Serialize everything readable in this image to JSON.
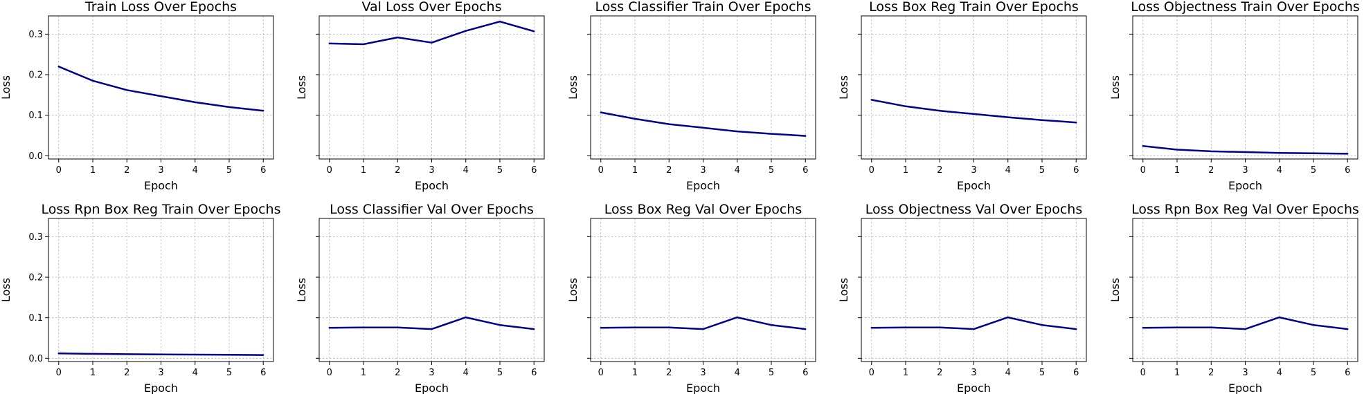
{
  "colors": {
    "line": "#00008b",
    "grid": "#b0b0b0",
    "background": "#ffffff"
  },
  "chart_data": [
    {
      "type": "line",
      "title": "Train Loss Over Epochs",
      "xlabel": "Epoch",
      "ylabel": "Loss",
      "x": [
        0,
        1,
        2,
        3,
        4,
        5,
        6
      ],
      "values": [
        0.22,
        0.185,
        0.162,
        0.147,
        0.132,
        0.12,
        0.111
      ],
      "xlim": [
        -0.3,
        6.3
      ],
      "ylim": [
        -0.008,
        0.345
      ],
      "yticks": [
        0.0,
        0.1,
        0.2,
        0.3
      ],
      "ytick_labels": [
        "0.0",
        "0.1",
        "0.2",
        "0.3"
      ],
      "grid": true
    },
    {
      "type": "line",
      "title": "Val Loss Over Epochs",
      "xlabel": "Epoch",
      "ylabel": "Loss",
      "x": [
        0,
        1,
        2,
        3,
        4,
        5,
        6
      ],
      "values": [
        0.277,
        0.275,
        0.292,
        0.279,
        0.308,
        0.331,
        0.307
      ],
      "xlim": [
        -0.3,
        6.3
      ],
      "ylim": [
        -0.008,
        0.345
      ],
      "yticks": [
        0.0,
        0.1,
        0.2,
        0.3
      ],
      "ytick_labels": [],
      "grid": true
    },
    {
      "type": "line",
      "title": "Loss Classifier Train Over Epochs",
      "xlabel": "Epoch",
      "ylabel": "Loss",
      "x": [
        0,
        1,
        2,
        3,
        4,
        5,
        6
      ],
      "values": [
        0.107,
        0.091,
        0.078,
        0.069,
        0.06,
        0.054,
        0.049
      ],
      "xlim": [
        -0.3,
        6.3
      ],
      "ylim": [
        -0.008,
        0.345
      ],
      "yticks": [
        0.0,
        0.1,
        0.2,
        0.3
      ],
      "ytick_labels": [],
      "grid": true
    },
    {
      "type": "line",
      "title": "Loss Box Reg Train Over Epochs",
      "xlabel": "Epoch",
      "ylabel": "Loss",
      "x": [
        0,
        1,
        2,
        3,
        4,
        5,
        6
      ],
      "values": [
        0.138,
        0.122,
        0.111,
        0.103,
        0.095,
        0.088,
        0.082
      ],
      "xlim": [
        -0.3,
        6.3
      ],
      "ylim": [
        -0.008,
        0.345
      ],
      "yticks": [
        0.0,
        0.1,
        0.2,
        0.3
      ],
      "ytick_labels": [],
      "grid": true
    },
    {
      "type": "line",
      "title": "Loss Objectness Train Over Epochs",
      "xlabel": "Epoch",
      "ylabel": "Loss",
      "x": [
        0,
        1,
        2,
        3,
        4,
        5,
        6
      ],
      "values": [
        0.024,
        0.015,
        0.011,
        0.009,
        0.007,
        0.006,
        0.005
      ],
      "xlim": [
        -0.3,
        6.3
      ],
      "ylim": [
        -0.008,
        0.345
      ],
      "yticks": [
        0.0,
        0.1,
        0.2,
        0.3
      ],
      "ytick_labels": [],
      "grid": true
    },
    {
      "type": "line",
      "title": "Loss Rpn Box Reg Train Over Epochs",
      "xlabel": "Epoch",
      "ylabel": "Loss",
      "x": [
        0,
        1,
        2,
        3,
        4,
        5,
        6
      ],
      "values": [
        0.012,
        0.011,
        0.01,
        0.0095,
        0.009,
        0.0085,
        0.008
      ],
      "xlim": [
        -0.3,
        6.3
      ],
      "ylim": [
        -0.008,
        0.345
      ],
      "yticks": [
        0.0,
        0.1,
        0.2,
        0.3
      ],
      "ytick_labels": [
        "0.0",
        "0.1",
        "0.2",
        "0.3"
      ],
      "grid": true
    },
    {
      "type": "line",
      "title": "Loss Classifier Val Over Epochs",
      "xlabel": "Epoch",
      "ylabel": "Loss",
      "x": [
        0,
        1,
        2,
        3,
        4,
        5,
        6
      ],
      "values": [
        0.075,
        0.076,
        0.076,
        0.072,
        0.101,
        0.082,
        0.072
      ],
      "xlim": [
        -0.3,
        6.3
      ],
      "ylim": [
        -0.008,
        0.345
      ],
      "yticks": [
        0.0,
        0.1,
        0.2,
        0.3
      ],
      "ytick_labels": [],
      "grid": true
    },
    {
      "type": "line",
      "title": "Loss Box Reg Val Over Epochs",
      "xlabel": "Epoch",
      "ylabel": "Loss",
      "x": [
        0,
        1,
        2,
        3,
        4,
        5,
        6
      ],
      "values": [
        0.075,
        0.076,
        0.076,
        0.072,
        0.101,
        0.082,
        0.072
      ],
      "xlim": [
        -0.3,
        6.3
      ],
      "ylim": [
        -0.008,
        0.345
      ],
      "yticks": [
        0.0,
        0.1,
        0.2,
        0.3
      ],
      "ytick_labels": [],
      "grid": true
    },
    {
      "type": "line",
      "title": "Loss Objectness Val Over Epochs",
      "xlabel": "Epoch",
      "ylabel": "Loss",
      "x": [
        0,
        1,
        2,
        3,
        4,
        5,
        6
      ],
      "values": [
        0.075,
        0.076,
        0.076,
        0.072,
        0.101,
        0.082,
        0.072
      ],
      "xlim": [
        -0.3,
        6.3
      ],
      "ylim": [
        -0.008,
        0.345
      ],
      "yticks": [
        0.0,
        0.1,
        0.2,
        0.3
      ],
      "ytick_labels": [],
      "grid": true
    },
    {
      "type": "line",
      "title": "Loss Rpn Box Reg Val Over Epochs",
      "xlabel": "Epoch",
      "ylabel": "Loss",
      "x": [
        0,
        1,
        2,
        3,
        4,
        5,
        6
      ],
      "values": [
        0.075,
        0.076,
        0.076,
        0.072,
        0.101,
        0.082,
        0.072
      ],
      "xlim": [
        -0.3,
        6.3
      ],
      "ylim": [
        -0.008,
        0.345
      ],
      "yticks": [
        0.0,
        0.1,
        0.2,
        0.3
      ],
      "ytick_labels": [],
      "grid": true
    }
  ]
}
